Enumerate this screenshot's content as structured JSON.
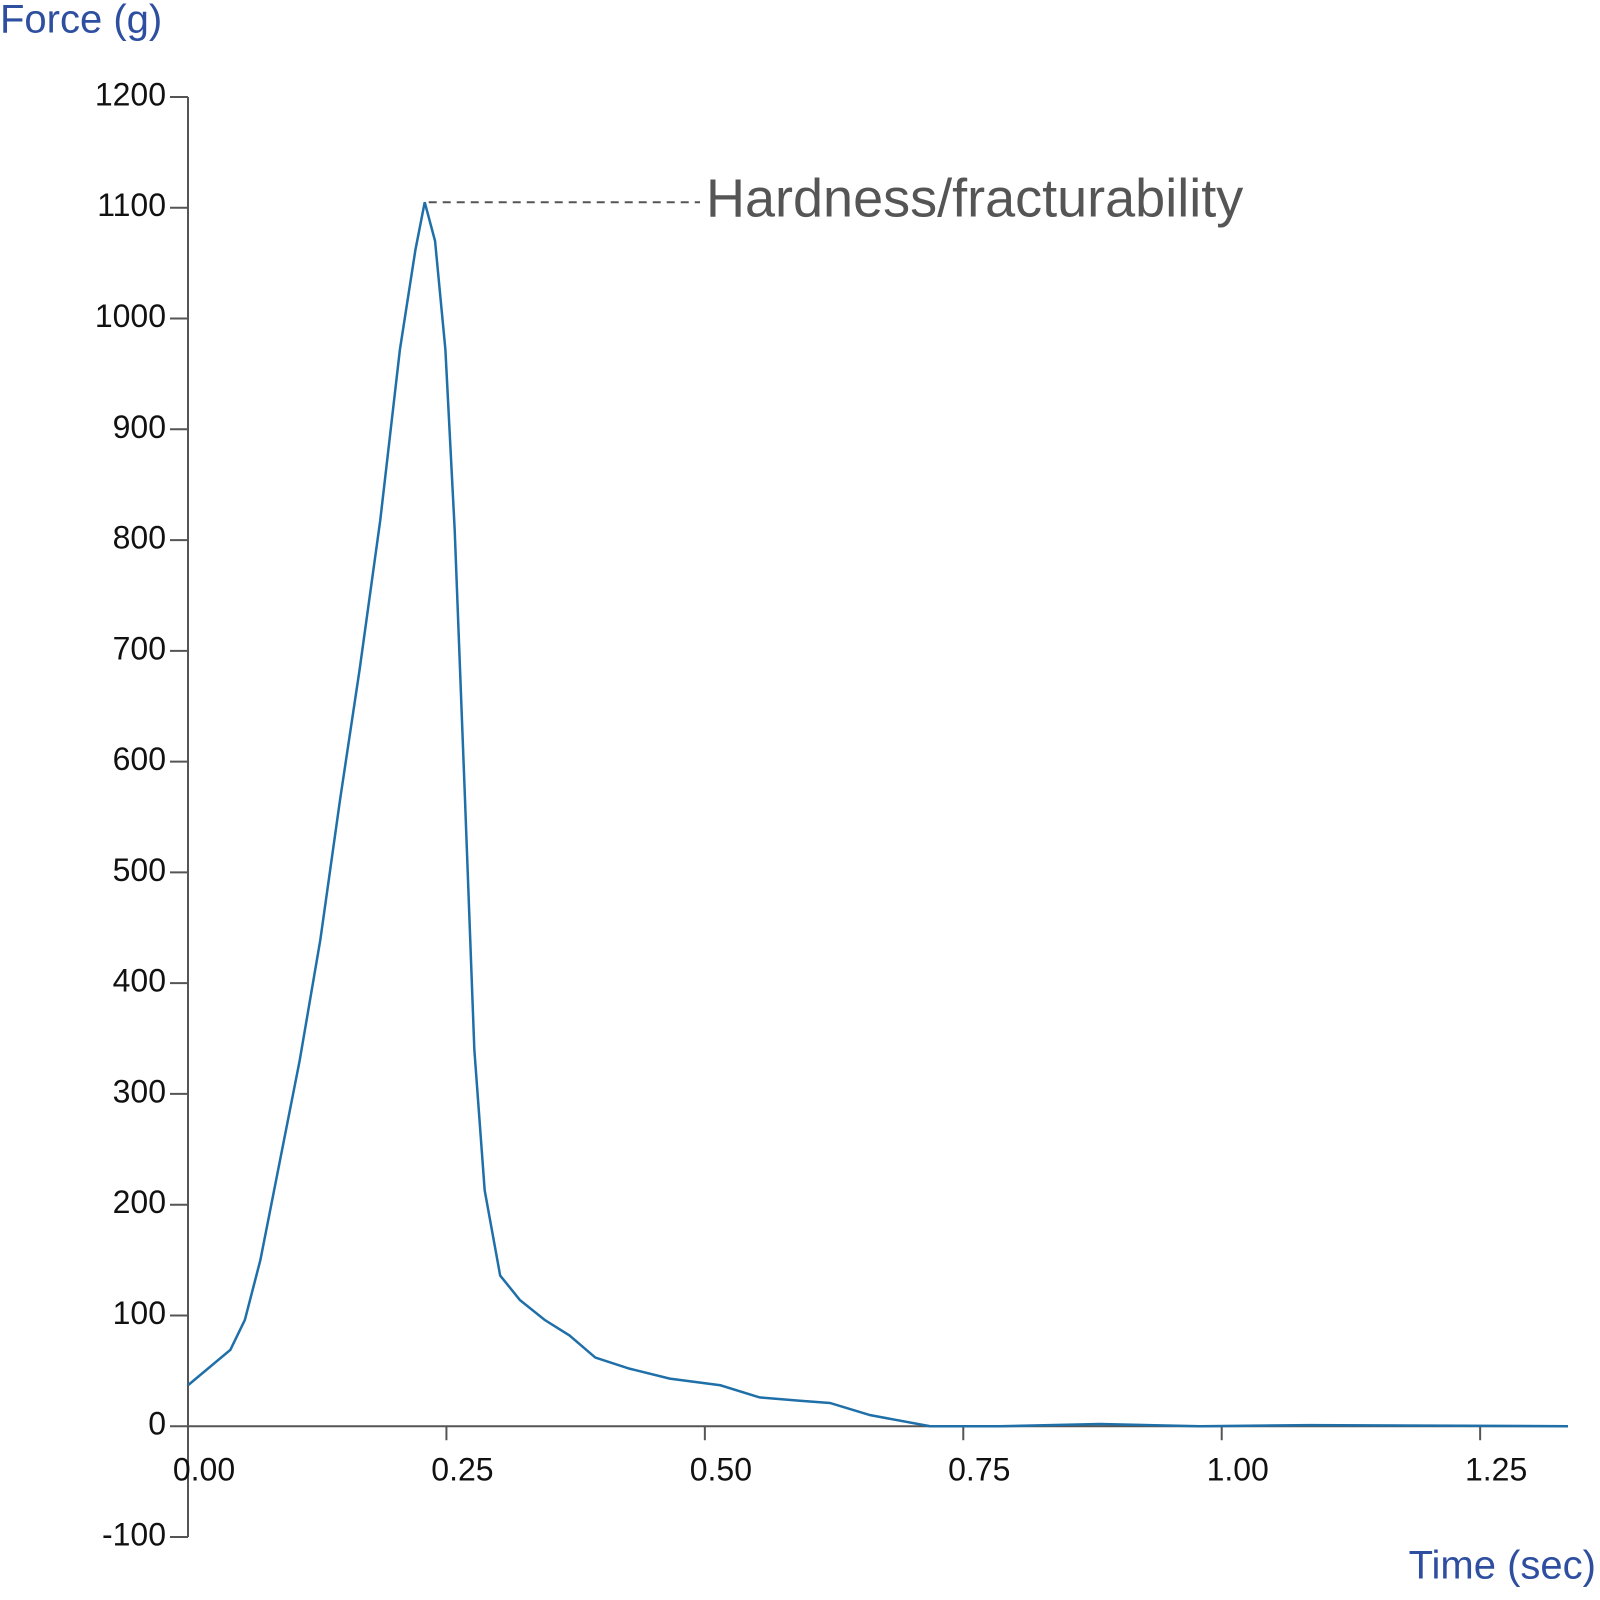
{
  "chart_data": {
    "type": "line",
    "y_label": "Force (g)",
    "x_label": "Time (sec)",
    "annotation": "Hardness/fracturability",
    "x": [
      0,
      0.041,
      0.055,
      0.07,
      0.089,
      0.108,
      0.128,
      0.147,
      0.166,
      0.186,
      0.205,
      0.22,
      0.229,
      0.239,
      0.249,
      0.258,
      0.268,
      0.277,
      0.287,
      0.302,
      0.321,
      0.345,
      0.369,
      0.394,
      0.427,
      0.466,
      0.515,
      0.553,
      0.592,
      0.621,
      0.66,
      0.718,
      0.785,
      0.882,
      0.979,
      1.085,
      1.335
    ],
    "series": [
      {
        "color": "#1f6fa8",
        "values": [
          37,
          69,
          96,
          150,
          240,
          330,
          439,
          565,
          683,
          818,
          972,
          1062,
          1105,
          1070,
          972,
          809,
          565,
          340,
          213,
          136,
          114,
          96,
          82,
          62,
          52,
          43,
          37,
          26,
          23,
          21,
          10,
          0,
          0,
          2,
          0,
          1,
          0
        ]
      }
    ],
    "xlim": [
      0,
      1.335
    ],
    "ylim": [
      -100,
      1200
    ],
    "xticks": [
      {
        "value": 0,
        "label": "0.00"
      },
      {
        "value": 0.25,
        "label": "0.25"
      },
      {
        "value": 0.5,
        "label": "0.50"
      },
      {
        "value": 0.75,
        "label": "0.75"
      },
      {
        "value": 1,
        "label": "1.00"
      },
      {
        "value": 1.25,
        "label": "1.25"
      }
    ],
    "yticks": [
      -100,
      0,
      100,
      200,
      300,
      400,
      500,
      600,
      700,
      800,
      900,
      1000,
      1100,
      1200
    ],
    "grid": false
  }
}
